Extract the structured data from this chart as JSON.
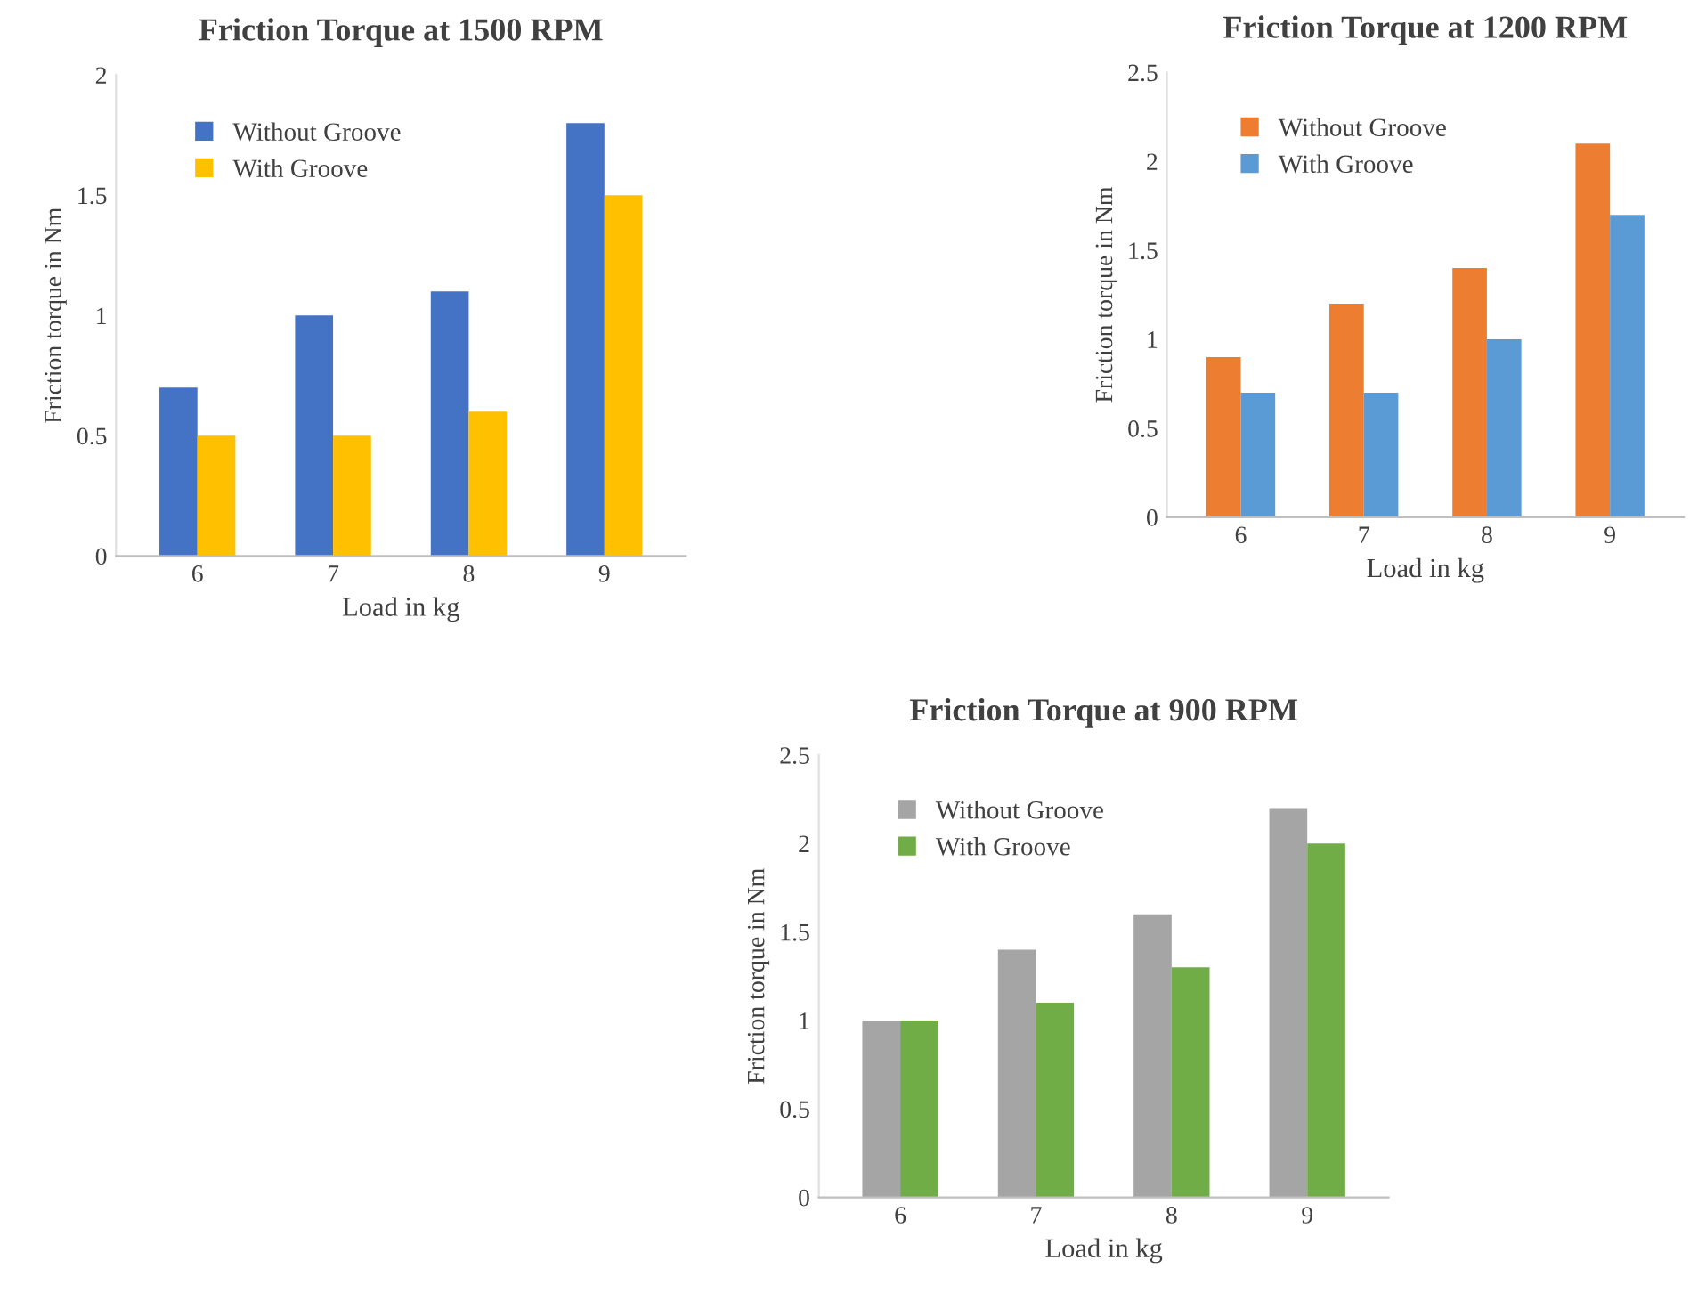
{
  "chart_data": [
    {
      "type": "bar",
      "title": "Friction Torque at 1500 RPM",
      "xlabel": "Load in kg",
      "ylabel": "Friction torque in Nm",
      "categories": [
        "6",
        "7",
        "8",
        "9"
      ],
      "ylim": [
        0,
        2
      ],
      "yticks": [
        0,
        0.5,
        1,
        1.5,
        2
      ],
      "grid": false,
      "legend": "top left",
      "series": [
        {
          "name": "Without Groove",
          "color": "#4472c4",
          "values": [
            0.7,
            1.0,
            1.1,
            1.8
          ]
        },
        {
          "name": "With Groove",
          "color": "#ffc000",
          "values": [
            0.5,
            0.5,
            0.6,
            1.5
          ]
        }
      ]
    },
    {
      "type": "bar",
      "title": "Friction Torque at 1200 RPM",
      "xlabel": "Load in kg",
      "ylabel": "Friction torque in Nm",
      "categories": [
        "6",
        "7",
        "8",
        "9"
      ],
      "ylim": [
        0,
        2.5
      ],
      "yticks": [
        0,
        0.5,
        1,
        1.5,
        2,
        2.5
      ],
      "grid": false,
      "legend": "top left",
      "series": [
        {
          "name": "Without Groove",
          "color": "#ed7d31",
          "values": [
            0.9,
            1.2,
            1.4,
            2.1
          ]
        },
        {
          "name": "With Groove",
          "color": "#5b9bd5",
          "values": [
            0.7,
            0.7,
            1.0,
            1.7
          ]
        }
      ]
    },
    {
      "type": "bar",
      "title": "Friction Torque at 900 RPM",
      "xlabel": "Load in kg",
      "ylabel": "Friction torque in Nm",
      "categories": [
        "6",
        "7",
        "8",
        "9"
      ],
      "ylim": [
        0,
        2.5
      ],
      "yticks": [
        0,
        0.5,
        1,
        1.5,
        2,
        2.5
      ],
      "grid": false,
      "legend": "top left",
      "series": [
        {
          "name": "Without Groove",
          "color": "#a5a5a5",
          "values": [
            1.0,
            1.4,
            1.6,
            2.2
          ]
        },
        {
          "name": "With Groove",
          "color": "#70ad47",
          "values": [
            1.0,
            1.1,
            1.3,
            2.0
          ]
        }
      ]
    }
  ]
}
